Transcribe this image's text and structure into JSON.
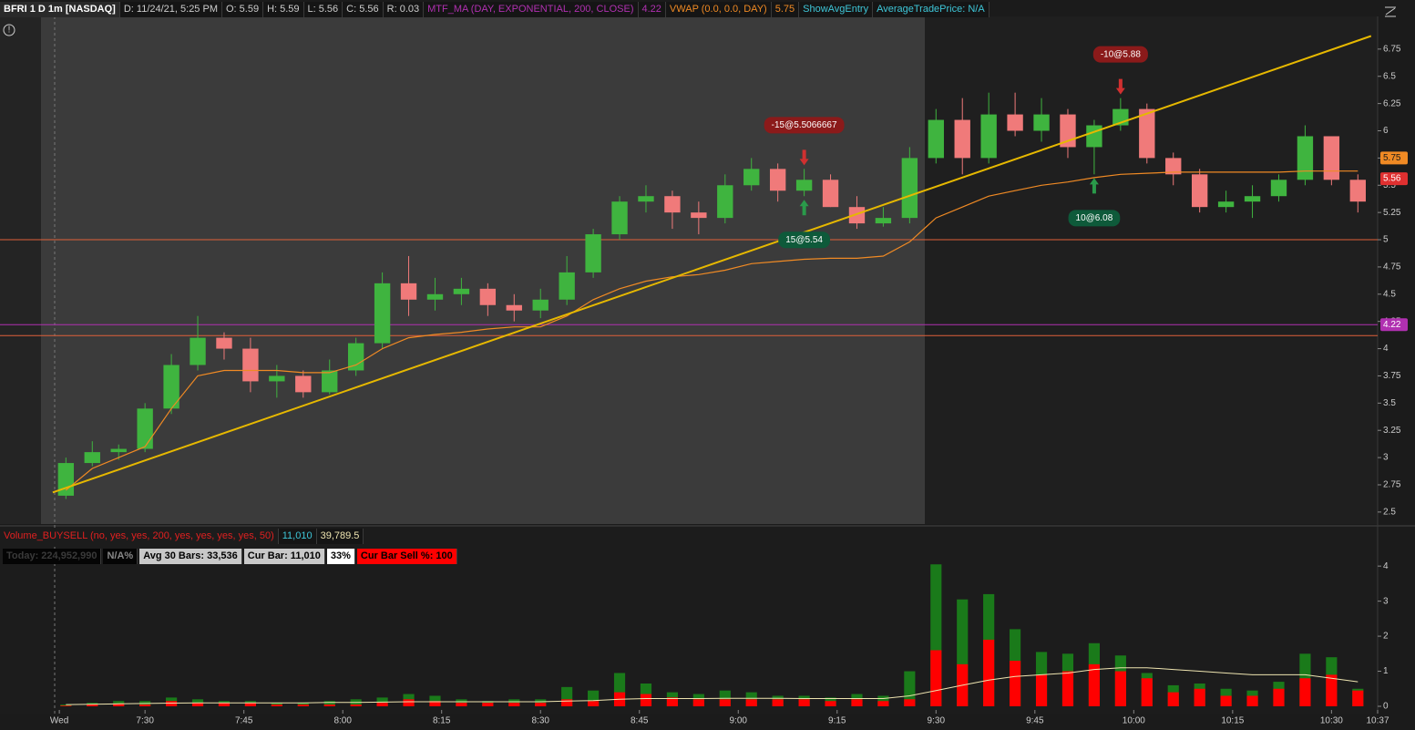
{
  "header": {
    "symbol": "BFRI 1 D 1m [NASDAQ]",
    "date": "D: 11/24/21, 5:25 PM",
    "open": "O: 5.59",
    "high": "H: 5.59",
    "low": "L: 5.56",
    "close": "C: 5.56",
    "range": "R: 0.03",
    "show_avg_entry": "ShowAvgEntry",
    "avg_trade_price": "AverageTradePrice: N/A"
  },
  "chart_data": [
    {
      "type": "candlestick",
      "x": [
        438,
        442,
        446,
        450,
        454,
        458,
        462,
        466,
        470,
        474,
        478,
        482,
        486,
        490,
        494,
        498,
        502,
        506,
        510,
        514,
        518,
        522,
        526,
        530,
        534,
        538,
        542,
        546,
        550,
        554,
        558,
        562,
        566,
        570,
        574,
        578,
        582,
        586,
        590,
        594,
        598,
        602,
        606,
        610,
        614,
        618,
        622,
        626,
        630,
        634
      ],
      "open": [
        2.65,
        2.95,
        3.05,
        3.08,
        3.45,
        3.85,
        4.1,
        4.0,
        3.7,
        3.75,
        3.6,
        3.8,
        4.05,
        4.6,
        4.45,
        4.5,
        4.55,
        4.4,
        4.35,
        4.45,
        4.7,
        5.05,
        5.35,
        5.4,
        5.25,
        5.2,
        5.5,
        5.65,
        5.45,
        5.55,
        5.3,
        5.15,
        5.2,
        5.75,
        6.1,
        5.75,
        6.15,
        6.0,
        6.15,
        5.85,
        6.05,
        6.2,
        5.75,
        5.6,
        5.3,
        5.35,
        5.4,
        5.55,
        5.95,
        5.55
      ],
      "high": [
        3.0,
        3.15,
        3.12,
        3.5,
        3.95,
        4.3,
        4.15,
        4.1,
        3.85,
        3.8,
        3.9,
        4.1,
        4.7,
        4.85,
        4.65,
        4.65,
        4.6,
        4.5,
        4.55,
        4.85,
        5.1,
        5.4,
        5.5,
        5.45,
        5.35,
        5.6,
        5.75,
        5.7,
        5.65,
        5.6,
        5.4,
        5.3,
        5.85,
        6.2,
        6.3,
        6.35,
        6.35,
        6.3,
        6.2,
        6.1,
        6.3,
        6.25,
        5.8,
        5.65,
        5.45,
        5.5,
        5.6,
        6.05,
        5.95,
        5.6
      ],
      "low": [
        2.62,
        2.92,
        2.98,
        3.05,
        3.4,
        3.8,
        3.9,
        3.6,
        3.55,
        3.55,
        3.58,
        3.75,
        4.0,
        4.3,
        4.35,
        4.4,
        4.3,
        4.25,
        4.28,
        4.4,
        4.65,
        5.0,
        5.25,
        5.1,
        5.05,
        5.15,
        5.45,
        5.35,
        5.4,
        5.3,
        5.1,
        5.12,
        5.15,
        5.7,
        5.6,
        5.7,
        5.95,
        5.9,
        5.75,
        5.6,
        6.0,
        5.7,
        5.5,
        5.25,
        5.25,
        5.2,
        5.35,
        5.5,
        5.5,
        5.25
      ],
      "close": [
        2.95,
        3.05,
        3.08,
        3.45,
        3.85,
        4.1,
        4.0,
        3.7,
        3.75,
        3.6,
        3.8,
        4.05,
        4.6,
        4.45,
        4.5,
        4.55,
        4.4,
        4.35,
        4.45,
        4.7,
        5.05,
        5.35,
        5.4,
        5.25,
        5.2,
        5.5,
        5.65,
        5.45,
        5.55,
        5.3,
        5.15,
        5.2,
        5.75,
        6.1,
        5.75,
        6.15,
        6.0,
        6.15,
        5.85,
        6.05,
        6.2,
        5.75,
        5.6,
        5.3,
        5.35,
        5.4,
        5.55,
        5.95,
        5.55,
        5.35
      ],
      "up_color": "#3fb43f",
      "down_color": "#f07a7a",
      "vwap": {
        "name": "VWAP (0.0, 0.0, DAY)",
        "color": "#f08a24",
        "last": 5.75,
        "values": [
          2.7,
          2.9,
          3.0,
          3.1,
          3.45,
          3.75,
          3.8,
          3.8,
          3.8,
          3.78,
          3.78,
          3.85,
          4.0,
          4.1,
          4.13,
          4.15,
          4.18,
          4.2,
          4.2,
          4.3,
          4.45,
          4.55,
          4.62,
          4.66,
          4.68,
          4.72,
          4.78,
          4.8,
          4.82,
          4.83,
          4.83,
          4.85,
          4.98,
          5.2,
          5.3,
          5.4,
          5.45,
          5.5,
          5.53,
          5.57,
          5.6,
          5.61,
          5.62,
          5.62,
          5.62,
          5.62,
          5.62,
          5.63,
          5.63,
          5.63
        ]
      },
      "mtf_ma": {
        "name": "MTF_MA (DAY, EXPONENTIAL, 200, CLOSE)",
        "color": "#b030b0",
        "value": 4.22
      },
      "last_price": 5.56,
      "last_color": "#e03030",
      "levels": [
        {
          "value": 5,
          "color": "#e0603a"
        },
        {
          "value": 4.12,
          "color": "#e0603a"
        }
      ],
      "trendline": {
        "x": [
          436,
          636
        ],
        "y": [
          2.68,
          6.87
        ],
        "color": "#e6b800"
      },
      "trades": [
        {
          "label": "-15@5.5066667",
          "x": 550,
          "side": "sell"
        },
        {
          "label": "15@5.54",
          "x": 550,
          "side": "buy"
        },
        {
          "label": "10@6.08",
          "x": 594,
          "side": "buy"
        },
        {
          "label": "-10@5.88",
          "x": 598,
          "side": "sell"
        }
      ],
      "xlim": [
        428,
        637
      ],
      "ylim": [
        2.39,
        7.05
      ],
      "xticks": [
        {
          "value": 437,
          "label": "Wed"
        },
        {
          "value": 450,
          "label": "7:30"
        },
        {
          "value": 465,
          "label": "7:45"
        },
        {
          "value": 480,
          "label": "8:00"
        },
        {
          "value": 495,
          "label": "8:15"
        },
        {
          "value": 510,
          "label": "8:30"
        },
        {
          "value": 525,
          "label": "8:45"
        },
        {
          "value": 540,
          "label": "9:00"
        },
        {
          "value": 555,
          "label": "9:15"
        },
        {
          "value": 570,
          "label": "9:30"
        },
        {
          "value": 585,
          "label": "9:45"
        },
        {
          "value": 600,
          "label": "10:00"
        },
        {
          "value": 615,
          "label": "10:15"
        },
        {
          "value": 630,
          "label": "10:30"
        },
        {
          "value": 637,
          "label": "10:37"
        }
      ],
      "yticks": [
        2.5,
        2.75,
        3,
        3.25,
        3.5,
        3.75,
        4,
        4.25,
        4.5,
        4.75,
        5,
        5.25,
        5.5,
        5.75,
        6,
        6.25,
        6.5,
        6.75
      ]
    },
    {
      "type": "bar",
      "title": "Volume_BUYSELL (no, yes, yes, 200, yes, yes, yes, yes, 50)",
      "readouts": [
        "11,010",
        "39,789.5"
      ],
      "stats": [
        {
          "text": "Today: 224,952,990",
          "bg": "#050505",
          "color": "#3a3a3a"
        },
        {
          "text": "N/A%",
          "bg": "#050505",
          "color": "#888888"
        },
        {
          "text": "Avg 30 Bars: 33,536",
          "bg": "#c8c8c8",
          "color": "#000000"
        },
        {
          "text": "Cur Bar: 11,010",
          "bg": "#c8c8c8",
          "color": "#000000"
        },
        {
          "text": "33%",
          "bg": "#ffffff",
          "color": "#000000"
        },
        {
          "text": "Cur Bar Sell %: 100",
          "bg": "#ff0000",
          "color": "#000000"
        }
      ],
      "series": [
        {
          "color": "#1a7a1a",
          "values": [
            0.05,
            0.1,
            0.15,
            0.15,
            0.25,
            0.2,
            0.15,
            0.15,
            0.1,
            0.1,
            0.15,
            0.2,
            0.25,
            0.35,
            0.3,
            0.2,
            0.15,
            0.2,
            0.2,
            0.55,
            0.45,
            0.95,
            0.65,
            0.4,
            0.35,
            0.45,
            0.4,
            0.3,
            0.3,
            0.25,
            0.35,
            0.3,
            1.0,
            4.05,
            3.05,
            3.2,
            2.2,
            1.55,
            1.5,
            1.8,
            1.45,
            0.95,
            0.6,
            0.65,
            0.5,
            0.45,
            0.7,
            1.5,
            1.4,
            0.5
          ]
        },
        {
          "color": "#ff0000",
          "values": [
            0.02,
            0.05,
            0.08,
            0.05,
            0.15,
            0.1,
            0.1,
            0.1,
            0.05,
            0.05,
            0.05,
            0.05,
            0.1,
            0.2,
            0.15,
            0.1,
            0.1,
            0.1,
            0.1,
            0.2,
            0.15,
            0.4,
            0.35,
            0.25,
            0.2,
            0.2,
            0.2,
            0.2,
            0.2,
            0.15,
            0.2,
            0.15,
            0.2,
            1.6,
            1.2,
            1.9,
            1.3,
            0.9,
            1.0,
            1.2,
            1.0,
            0.8,
            0.4,
            0.5,
            0.3,
            0.3,
            0.5,
            0.8,
            0.9,
            0.45
          ]
        }
      ],
      "average": {
        "color": "#eee4b0",
        "values": [
          0.05,
          0.06,
          0.07,
          0.08,
          0.09,
          0.1,
          0.1,
          0.1,
          0.1,
          0.1,
          0.11,
          0.11,
          0.12,
          0.13,
          0.13,
          0.13,
          0.13,
          0.13,
          0.13,
          0.15,
          0.16,
          0.2,
          0.22,
          0.22,
          0.22,
          0.23,
          0.23,
          0.23,
          0.22,
          0.22,
          0.22,
          0.22,
          0.3,
          0.45,
          0.6,
          0.75,
          0.85,
          0.9,
          0.95,
          1.05,
          1.1,
          1.1,
          1.05,
          1.0,
          0.95,
          0.9,
          0.9,
          0.9,
          0.8,
          0.7
        ]
      },
      "ylim": [
        0,
        4.55
      ],
      "yticks": [
        0,
        1,
        2,
        3,
        4
      ]
    }
  ]
}
